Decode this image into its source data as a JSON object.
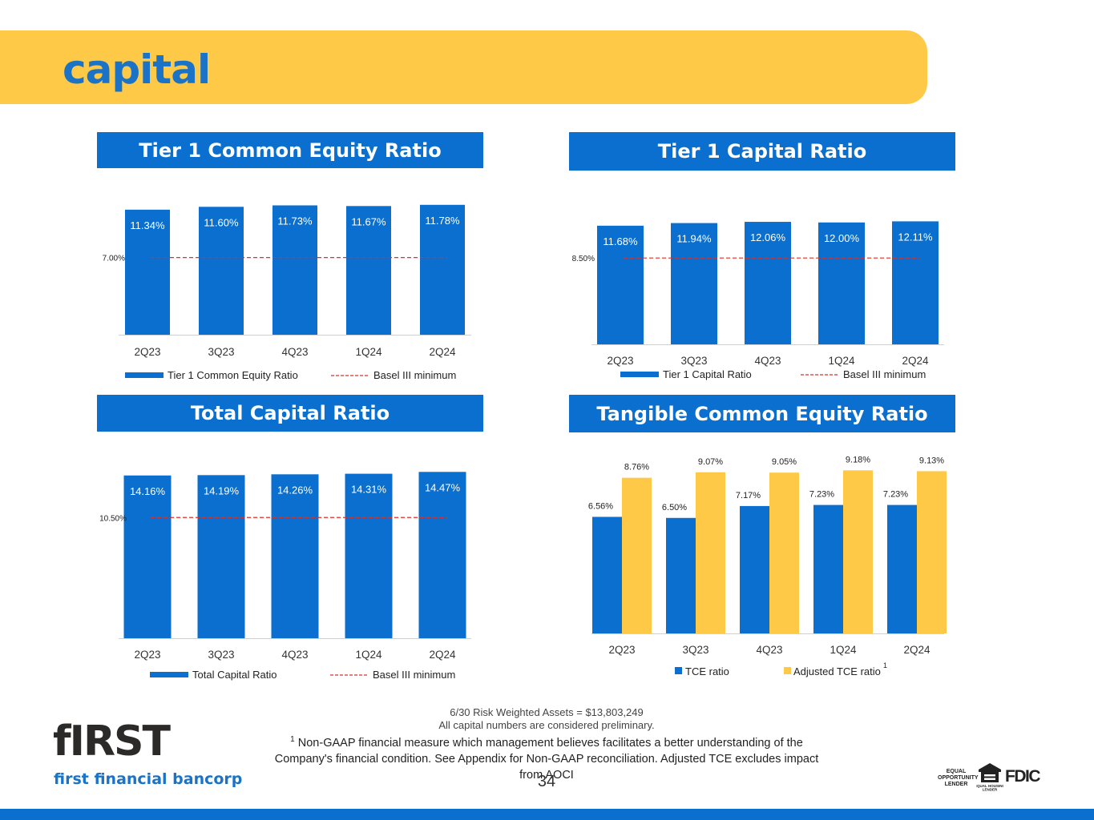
{
  "header": {
    "title": "capital"
  },
  "panels": {
    "tier1_common": {
      "title": "Tier 1 Common Equity Ratio"
    },
    "tier1_capital": {
      "title": "Tier 1 Capital Ratio"
    },
    "total_capital": {
      "title": "Total Capital Ratio"
    },
    "tce": {
      "title": "Tangible Common Equity Ratio"
    }
  },
  "colors": {
    "bar_blue": "#0a6fce",
    "bar_gold": "#fdc946",
    "minimum_line": "#d9302a",
    "banner": "#fdc946"
  },
  "chart_data": [
    {
      "type": "bar",
      "title": "Tier 1 Common Equity Ratio",
      "categories": [
        "2Q23",
        "3Q23",
        "4Q23",
        "1Q24",
        "2Q24"
      ],
      "series": [
        {
          "name": "Tier 1 Common Equity Ratio",
          "values": [
            11.34,
            11.6,
            11.73,
            11.67,
            11.78
          ]
        }
      ],
      "data_labels": [
        "11.34%",
        "11.60%",
        "11.73%",
        "11.67%",
        "11.78%"
      ],
      "reference_line": {
        "name": "Basel III minimum",
        "value": 7.0,
        "label": "7.00%"
      },
      "ylim": [
        0,
        12.2
      ],
      "legend": "bottom"
    },
    {
      "type": "bar",
      "title": "Tier 1 Capital Ratio",
      "categories": [
        "2Q23",
        "3Q23",
        "4Q23",
        "1Q24",
        "2Q24"
      ],
      "series": [
        {
          "name": "Tier 1 Capital Ratio",
          "values": [
            11.68,
            11.94,
            12.06,
            12.0,
            12.11
          ]
        }
      ],
      "data_labels": [
        "11.68%",
        "11.94%",
        "12.06%",
        "12.00%",
        "12.11%"
      ],
      "reference_line": {
        "name": "Basel III minimum",
        "value": 8.5,
        "label": "8.50%"
      },
      "ylim": [
        0,
        12.3
      ],
      "legend": "bottom"
    },
    {
      "type": "bar",
      "title": "Total Capital Ratio",
      "categories": [
        "2Q23",
        "3Q23",
        "4Q23",
        "1Q24",
        "2Q24"
      ],
      "series": [
        {
          "name": "Total Capital Ratio",
          "values": [
            14.16,
            14.19,
            14.26,
            14.31,
            14.47
          ]
        }
      ],
      "data_labels": [
        "14.16%",
        "14.19%",
        "14.26%",
        "14.31%",
        "14.47%"
      ],
      "reference_line": {
        "name": "Basel III minimum",
        "value": 10.5,
        "label": "10.50%"
      },
      "ylim": [
        0,
        14.7
      ],
      "legend": "bottom"
    },
    {
      "type": "bar",
      "title": "Tangible Common Equity Ratio",
      "categories": [
        "2Q23",
        "3Q23",
        "4Q23",
        "1Q24",
        "2Q24"
      ],
      "series": [
        {
          "name": "TCE ratio",
          "values": [
            6.56,
            6.5,
            7.17,
            7.23,
            7.23
          ],
          "labels": [
            "6.56%",
            "6.50%",
            "7.17%",
            "7.23%",
            "7.23%"
          ]
        },
        {
          "name": "Adjusted TCE ratio",
          "values": [
            8.76,
            9.07,
            9.05,
            9.18,
            9.13
          ],
          "labels": [
            "8.76%",
            "9.07%",
            "9.05%",
            "9.18%",
            "9.13%"
          ]
        }
      ],
      "legend_superscript": "1",
      "ylim": [
        0,
        9.6
      ],
      "legend": "bottom"
    }
  ],
  "footer": {
    "rwa": "6/30 Risk Weighted Assets = $13,803,249",
    "preliminary": "All capital numbers are considered preliminary.",
    "footnote_marker": "1",
    "footnote_text": " Non-GAAP financial measure which management believes facilitates a better understanding of the Company's financial condition.  See Appendix for Non-GAAP reconciliation.  Adjusted TCE excludes impact from AOCI",
    "page_number": "34"
  },
  "logo": {
    "wordmark": "fIRST",
    "tagline": "first financial bancorp"
  },
  "badges": {
    "equal_opportunity": "EQUAL OPPORTUNITY LENDER",
    "equal_housing": "EQUAL HOUSING LENDER",
    "fdic": "FDIC"
  }
}
